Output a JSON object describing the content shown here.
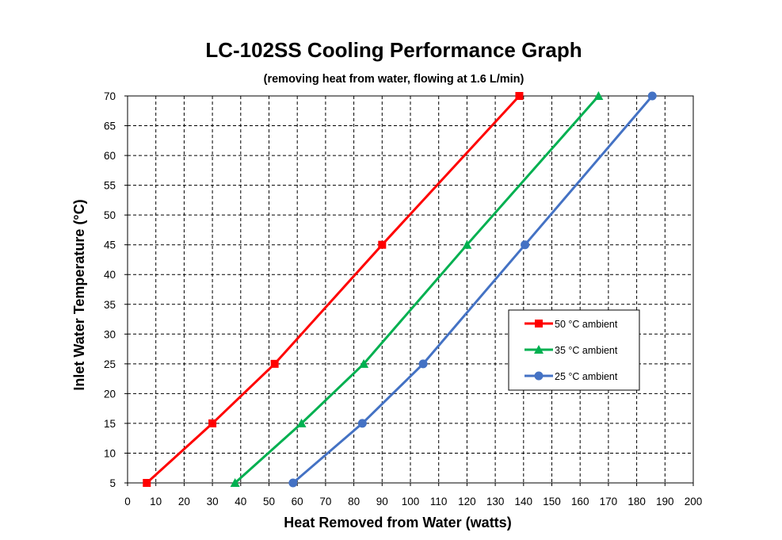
{
  "chart_data": {
    "type": "line",
    "title": "LC-102SS Cooling Performance Graph",
    "subtitle": "(removing heat from water, flowing at 1.6 L/min)",
    "xlabel": "Heat Removed from Water (watts)",
    "ylabel": "Inlet Water Temperature (°C)",
    "xlim": [
      0,
      200
    ],
    "ylim": [
      5,
      70
    ],
    "xticks": [
      0,
      10,
      20,
      30,
      40,
      50,
      60,
      70,
      80,
      90,
      100,
      110,
      120,
      130,
      140,
      150,
      160,
      170,
      180,
      190,
      200
    ],
    "yticks": [
      5,
      10,
      15,
      20,
      25,
      30,
      35,
      40,
      45,
      50,
      55,
      60,
      65,
      70
    ],
    "grid": true,
    "legend_position": "right",
    "series": [
      {
        "name": "50 °C ambient",
        "color": "#ff0000",
        "marker": "square",
        "x": [
          6.8,
          30,
          52,
          90,
          138.5
        ],
        "y": [
          5,
          15,
          25,
          45,
          70
        ]
      },
      {
        "name": "35 °C ambient",
        "color": "#00b050",
        "marker": "triangle",
        "x": [
          38,
          61.5,
          83.5,
          120,
          166.5
        ],
        "y": [
          5,
          15,
          25,
          45,
          70
        ]
      },
      {
        "name": "25 °C ambient",
        "color": "#4472c4",
        "marker": "circle",
        "x": [
          58.5,
          83,
          104.5,
          140.5,
          185.5
        ],
        "y": [
          5,
          15,
          25,
          45,
          70
        ]
      }
    ]
  }
}
